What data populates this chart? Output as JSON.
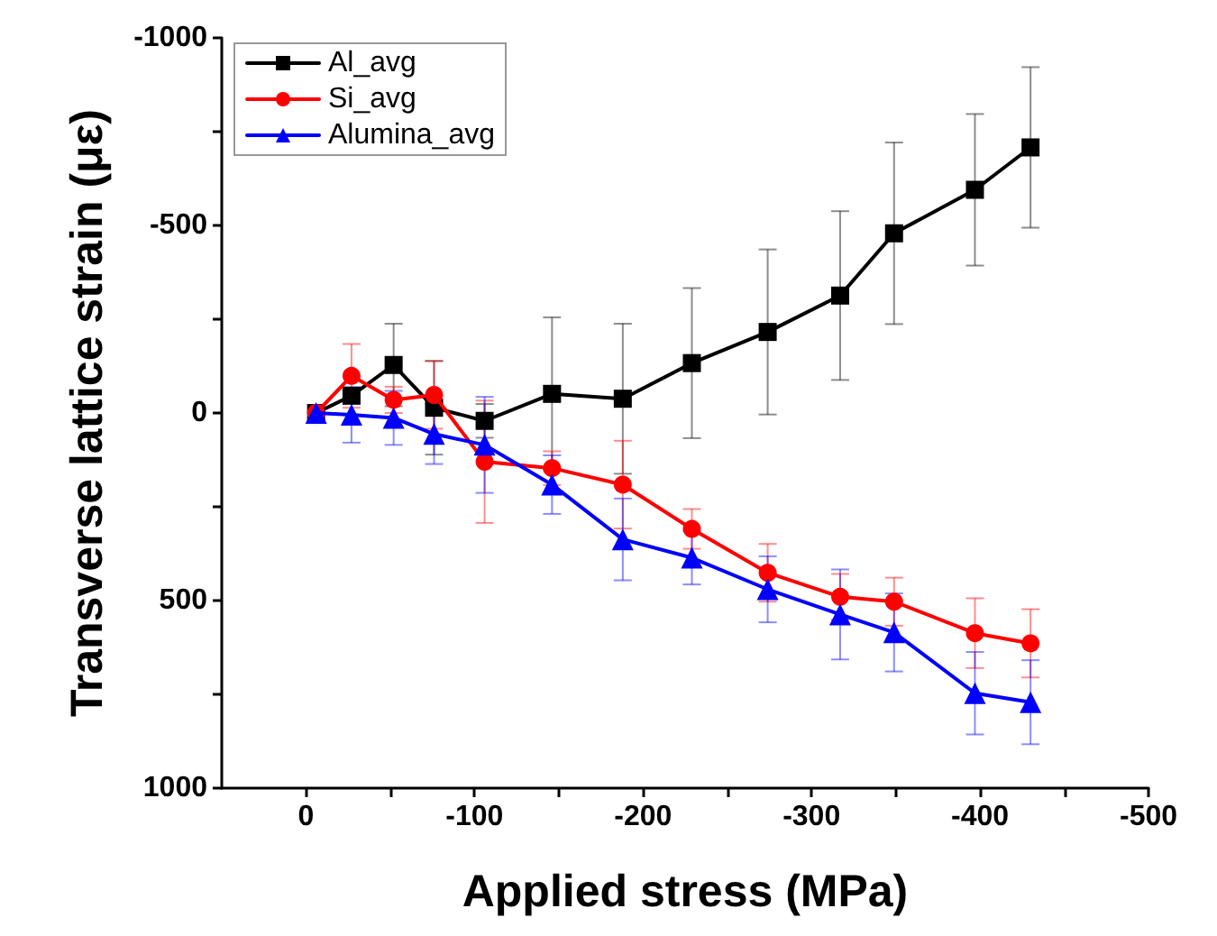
{
  "chart_data": {
    "type": "line",
    "xlabel": "Applied stress (MPa)",
    "ylabel": "Transverse lattice strain (με)",
    "xlim": [
      50,
      -500
    ],
    "xticks": [
      0,
      -100,
      -200,
      -300,
      -400,
      -500,
      {
        "value": -50,
        "label": null
      },
      {
        "value": -150,
        "label": null
      },
      {
        "value": -250,
        "label": null
      },
      {
        "value": -350,
        "label": null
      },
      {
        "value": -450,
        "label": null
      }
    ],
    "ylim": [
      1000,
      -1000
    ],
    "yticks": [
      -1000,
      -500,
      0,
      500,
      1000,
      {
        "value": -750,
        "label": null
      },
      {
        "value": -250,
        "label": null
      },
      {
        "value": 250,
        "label": null
      },
      {
        "value": 750,
        "label": null
      }
    ],
    "grid": false,
    "legend": "top left",
    "line_style": "solid",
    "series": [
      {
        "name": "Al_avg",
        "color": "#000000",
        "marker": "square",
        "x": [
          -6,
          -27,
          -52,
          -76,
          -106,
          -146,
          -188,
          -229,
          -274,
          -317,
          -349,
          -397,
          -430
        ],
        "values": [
          0,
          -46,
          -128,
          -14,
          21,
          -51,
          -38,
          -133,
          -216,
          -313,
          -479,
          -595,
          -708
        ],
        "errors": [
          null,
          null,
          110,
          125,
          45,
          204,
          200,
          200,
          220,
          225,
          242,
          202,
          214
        ]
      },
      {
        "name": "Si_avg",
        "color": "#ff0000",
        "marker": "circle",
        "x": [
          -6,
          -27,
          -52,
          -76,
          -106,
          -146,
          -188,
          -229,
          -274,
          -317,
          -349,
          -397,
          -430
        ],
        "values": [
          0,
          -99,
          -35,
          -48,
          130,
          147,
          191,
          309,
          426,
          490,
          503,
          587,
          614
        ],
        "errors": [
          null,
          85,
          35,
          90,
          163,
          45,
          117,
          53,
          77,
          61,
          64,
          93,
          91
        ]
      },
      {
        "name": "Alumina_avg",
        "color": "#0000ff",
        "marker": "triangle",
        "x": [
          -6,
          -27,
          -52,
          -76,
          -106,
          -146,
          -188,
          -229,
          -274,
          -317,
          -349,
          -397,
          -430
        ],
        "values": [
          0,
          5,
          13,
          56,
          85,
          191,
          337,
          386,
          470,
          537,
          585,
          747,
          771
        ],
        "errors": [
          null,
          74,
          72,
          80,
          128,
          78,
          109,
          71,
          88,
          120,
          104,
          110,
          112
        ]
      }
    ]
  }
}
